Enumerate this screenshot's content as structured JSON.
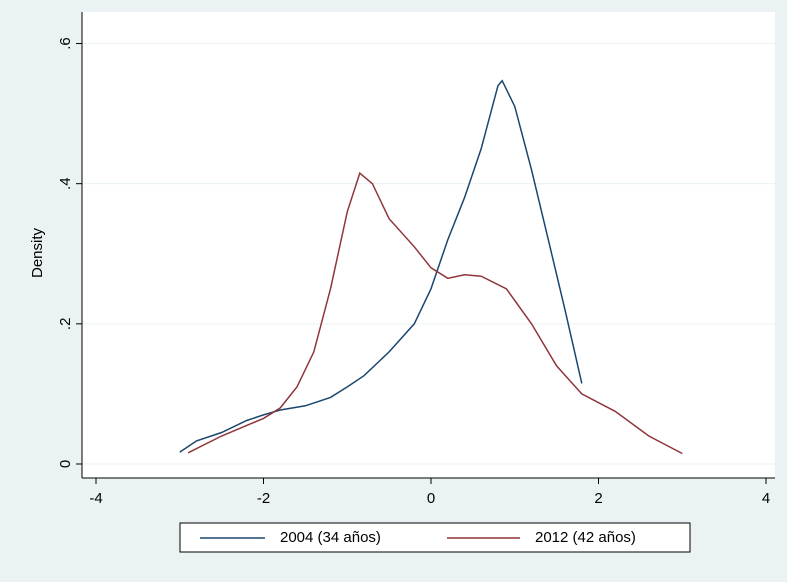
{
  "chart_data": {
    "type": "line",
    "y_label": "Density",
    "xlim": [
      -4,
      4
    ],
    "xticks": [
      -4,
      -2,
      0,
      2,
      4
    ],
    "ylim": [
      -0.02,
      0.645
    ],
    "yticks": [
      0,
      {
        "value": 0.2,
        "label": ".2"
      },
      {
        "value": 0.4,
        "label": ".4"
      },
      {
        "value": 0.6,
        "label": ".6"
      }
    ],
    "grid": true,
    "legend": "bottom",
    "series": [
      {
        "name": "2004 (34 años)",
        "color": "#1a476f",
        "x": [
          -3.0,
          -2.8,
          -2.5,
          -2.2,
          -2.0,
          -1.8,
          -1.5,
          -1.2,
          -1.0,
          -0.8,
          -0.5,
          -0.2,
          0.0,
          0.2,
          0.4,
          0.6,
          0.8,
          0.85,
          1.0,
          1.2,
          1.4,
          1.6,
          1.8
        ],
        "values": [
          0.017,
          0.033,
          0.045,
          0.062,
          0.07,
          0.077,
          0.083,
          0.095,
          0.11,
          0.126,
          0.16,
          0.2,
          0.25,
          0.32,
          0.38,
          0.45,
          0.54,
          0.547,
          0.51,
          0.42,
          0.32,
          0.22,
          0.115
        ]
      },
      {
        "name": "2012 (42 años)",
        "color": "#90353b",
        "x": [
          -2.9,
          -2.5,
          -2.0,
          -1.8,
          -1.6,
          -1.4,
          -1.2,
          -1.0,
          -0.85,
          -0.7,
          -0.5,
          -0.2,
          0.0,
          0.2,
          0.4,
          0.6,
          0.9,
          1.2,
          1.5,
          1.8,
          2.2,
          2.6,
          3.0
        ],
        "values": [
          0.016,
          0.04,
          0.065,
          0.08,
          0.11,
          0.16,
          0.25,
          0.36,
          0.415,
          0.4,
          0.35,
          0.31,
          0.28,
          0.265,
          0.27,
          0.268,
          0.25,
          0.2,
          0.14,
          0.1,
          0.075,
          0.04,
          0.015
        ]
      }
    ]
  }
}
